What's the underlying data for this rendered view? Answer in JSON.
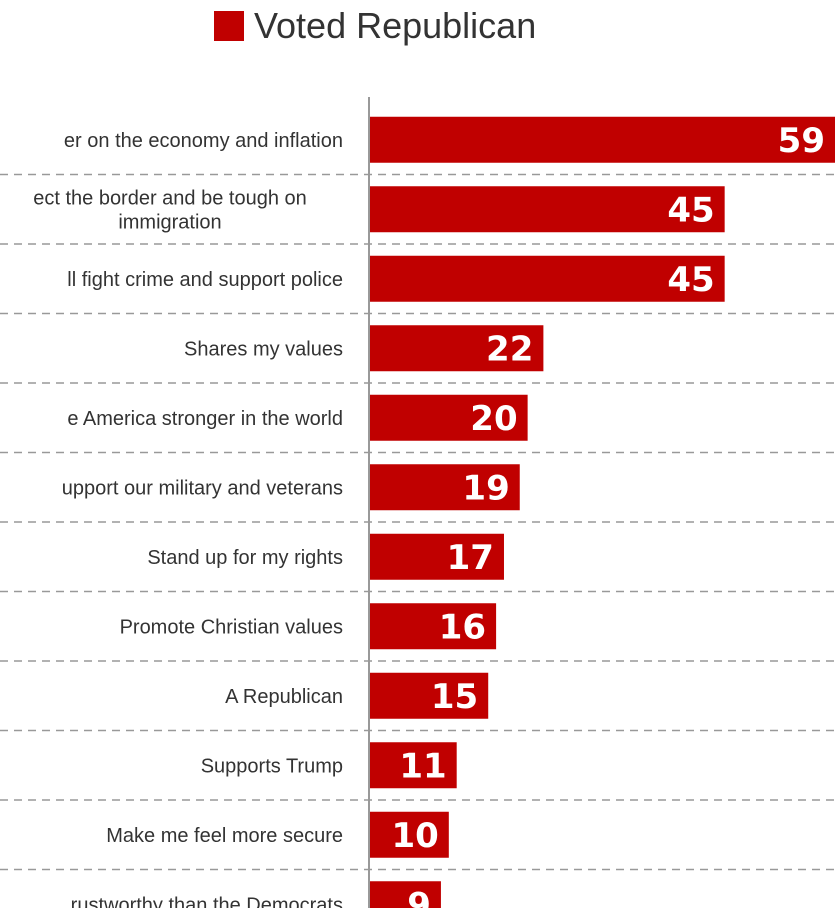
{
  "chart_data": {
    "type": "bar",
    "orientation": "horizontal",
    "legend": {
      "position": "top-center",
      "entries": [
        {
          "name": "Voted Republican",
          "color": "#C00000"
        }
      ]
    },
    "grid": true,
    "xlim": [
      0,
      59
    ],
    "categories": [
      "er on the economy and inflation",
      [
        "ect the border and be tough on",
        "immigration"
      ],
      "ll fight crime and support police",
      "Shares my values",
      "e America stronger in the world",
      "upport our military and veterans",
      "Stand up for my rights",
      "Promote Christian values",
      "A Republican",
      "Supports Trump",
      "Make me feel more secure",
      "rustworthy than the Democrats"
    ],
    "series": [
      {
        "name": "Voted Republican",
        "color": "#C00000",
        "values": [
          59,
          45,
          45,
          22,
          20,
          19,
          17,
          16,
          15,
          11,
          10,
          9
        ]
      }
    ]
  }
}
